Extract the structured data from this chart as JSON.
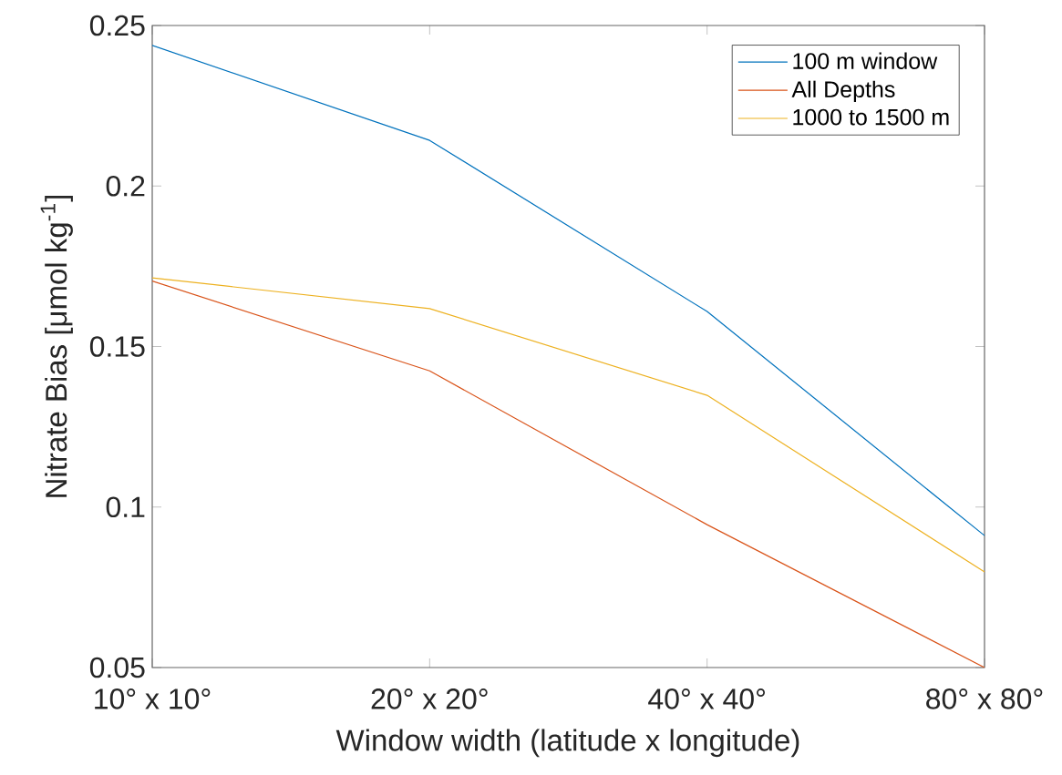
{
  "chart_data": {
    "type": "line",
    "xlabel": "Window width (latitude x longitude)",
    "ylabel": "Nitrate Bias [μmol kg$^{-1}$]",
    "categories": [
      "10° x 10°",
      "20° x 20°",
      "40° x 40°",
      "80° x 80°"
    ],
    "series": [
      {
        "name": "100 m window",
        "color": "#0072bd",
        "values": [
          0.2438,
          0.2142,
          0.1609,
          0.0911
        ]
      },
      {
        "name": "All Depths",
        "color": "#d95319",
        "values": [
          0.1704,
          0.1424,
          0.0945,
          0.05
        ]
      },
      {
        "name": "1000 to 1500 m",
        "color": "#edb120",
        "values": [
          0.1714,
          0.1618,
          0.1348,
          0.0798
        ]
      }
    ],
    "ylim": [
      0.05,
      0.25
    ],
    "yticks": [
      0.05,
      0.1,
      0.15,
      0.2,
      0.25
    ],
    "grid": false,
    "legend": "top right",
    "marker": "none",
    "line_style": "solid"
  }
}
